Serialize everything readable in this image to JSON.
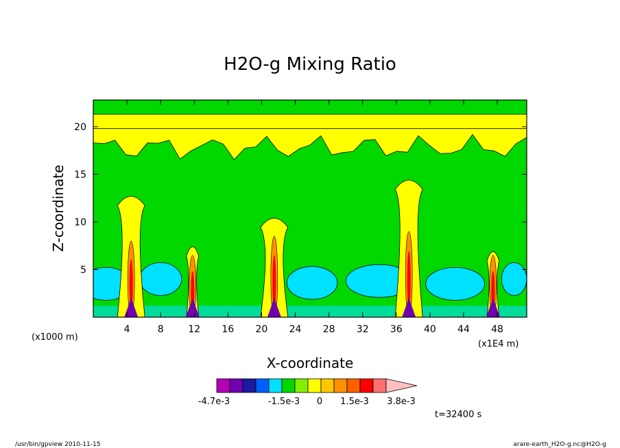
{
  "chart_data": {
    "type": "heatmap",
    "title": "H2O-g Mixing Ratio",
    "xlabel": "X-coordinate",
    "ylabel": "Z-coordinate",
    "x_unit_left": "(x1000 m)",
    "x_unit_right": "(x1E4 m)",
    "xlim": [
      0,
      51.5
    ],
    "ylim": [
      0,
      22.8
    ],
    "x_ticks": [
      4,
      8,
      12,
      16,
      20,
      24,
      28,
      32,
      36,
      40,
      44,
      48
    ],
    "y_ticks": [
      5,
      10,
      15,
      20
    ],
    "time_label": "t=32400 s",
    "colorbar": {
      "labels": [
        "-4.7e-3",
        "-1.5e-3",
        "0",
        "1.5e-3",
        "3.8e-3"
      ],
      "colors": [
        "#b400b4",
        "#7000b0",
        "#1a1aa0",
        "#0060ff",
        "#00e0ff",
        "#00d800",
        "#80f000",
        "#ffff00",
        "#ffc800",
        "#ff9000",
        "#ff6000",
        "#ff0000",
        "#ff7070",
        "#ffc0c0"
      ]
    },
    "plumes": [
      {
        "x": 4.5,
        "top": 12.8,
        "core_top": 8
      },
      {
        "x": 11.8,
        "top": 7.5,
        "core_top": 6.5
      },
      {
        "x": 21.5,
        "top": 10.5,
        "core_top": 8.5
      },
      {
        "x": 37.5,
        "top": 14.5,
        "core_top": 9
      },
      {
        "x": 47.5,
        "top": 7,
        "core_top": 6.5
      }
    ]
  },
  "footer": {
    "left": "/usr/bin/gpview   2010-11-15",
    "right": "arare-earth_H2O-g.nc@H2O-g"
  }
}
